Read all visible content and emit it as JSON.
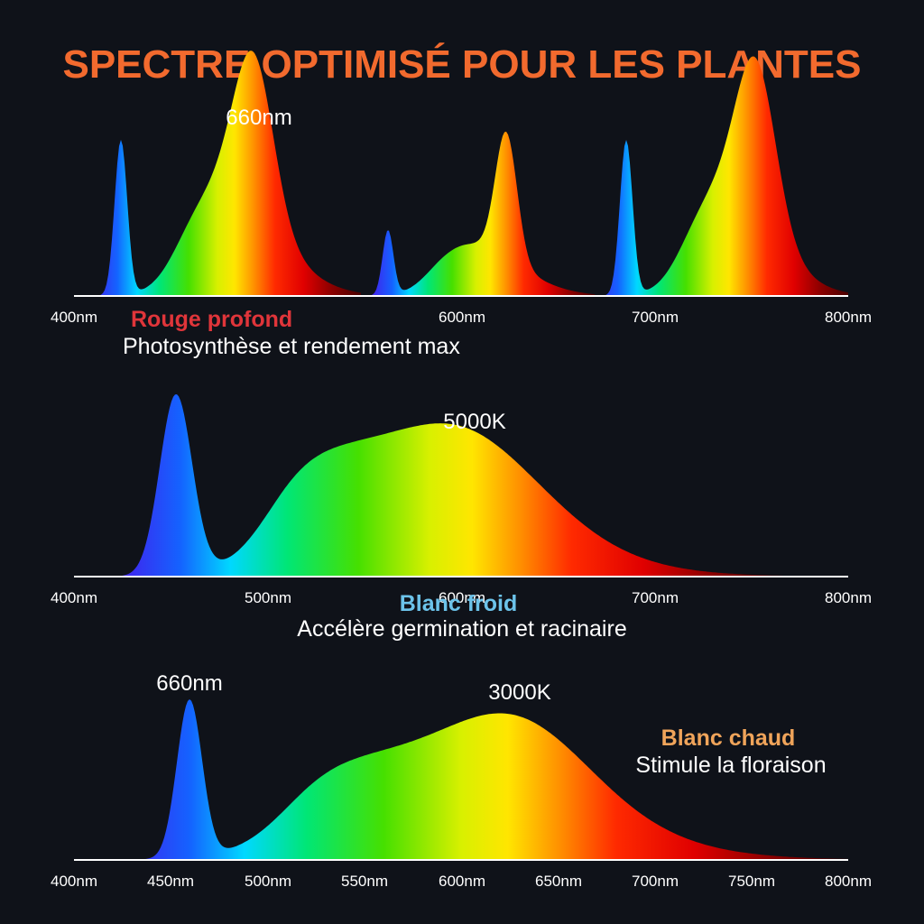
{
  "page": {
    "title": "SPECTRE OPTIMISÉ POUR LES PLANTES",
    "title_color": "#f26a2e",
    "background": "#0f1219"
  },
  "chart_data": [
    {
      "type": "area",
      "x_ticks": [
        "400nm",
        "600nm",
        "700nm",
        "800nm"
      ],
      "peak_labels": [
        {
          "text": "660nm"
        }
      ],
      "legend": {
        "name": "Rouge profond",
        "name_color": "#e0353a",
        "desc": "Photosynthèse et rendement max"
      },
      "grid": false
    },
    {
      "type": "area",
      "x_ticks": [
        "400nm",
        "500nm",
        "600nm",
        "700nm",
        "800nm"
      ],
      "peak_labels": [
        {
          "text": "5000K"
        }
      ],
      "legend": {
        "name": "Blanc froid",
        "name_color": "#6cc3ea",
        "desc": "Accélère germination et racinaire"
      },
      "grid": false
    },
    {
      "type": "area",
      "x_ticks": [
        "400nm",
        "450nm",
        "500nm",
        "550nm",
        "600nm",
        "650nm",
        "700nm",
        "750nm",
        "800nm"
      ],
      "peak_labels": [
        {
          "text": "660nm"
        },
        {
          "text": "3000K"
        }
      ],
      "legend": {
        "name": "Blanc chaud",
        "name_color": "#f0a45a",
        "desc": "Stimule la floraison"
      },
      "grid": false
    }
  ]
}
